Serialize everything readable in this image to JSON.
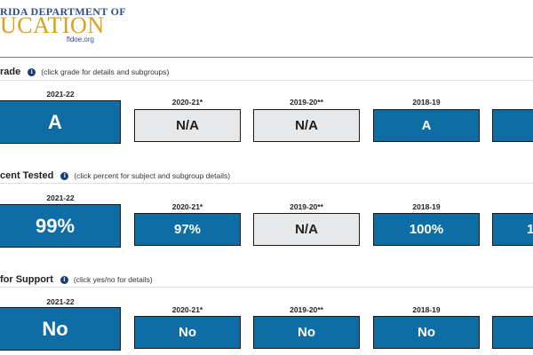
{
  "logo": {
    "line1": "RIDA DEPARTMENT OF",
    "line2": "UCATION",
    "domain": "fldoe.org"
  },
  "sections": [
    {
      "title": "rade",
      "note": "(click grade for details and subgroups)",
      "cards": [
        {
          "year": "2021-22",
          "value": "A",
          "gray": false
        },
        {
          "year": "2020-21*",
          "value": "N/A",
          "gray": true
        },
        {
          "year": "2019-20**",
          "value": "N/A",
          "gray": true
        },
        {
          "year": "2018-19",
          "value": "A",
          "gray": false
        },
        {
          "year": "",
          "value": "",
          "gray": false
        }
      ]
    },
    {
      "title": "cent Tested",
      "note": "(click percent for subject and subgroup details)",
      "cards": [
        {
          "year": "2021-22",
          "value": "99%",
          "gray": false
        },
        {
          "year": "2020-21*",
          "value": "97%",
          "gray": false
        },
        {
          "year": "2019-20**",
          "value": "N/A",
          "gray": true
        },
        {
          "year": "2018-19",
          "value": "100%",
          "gray": false
        },
        {
          "year": "",
          "value": "1",
          "gray": false
        }
      ]
    },
    {
      "title": "for Support",
      "note": "(click yes/no for details)",
      "cards": [
        {
          "year": "2021-22",
          "value": "No",
          "gray": false
        },
        {
          "year": "2020-21*",
          "value": "No",
          "gray": false
        },
        {
          "year": "2019-20**",
          "value": "No",
          "gray": false
        },
        {
          "year": "2018-19",
          "value": "No",
          "gray": false
        },
        {
          "year": "",
          "value": "",
          "gray": false
        }
      ]
    }
  ]
}
